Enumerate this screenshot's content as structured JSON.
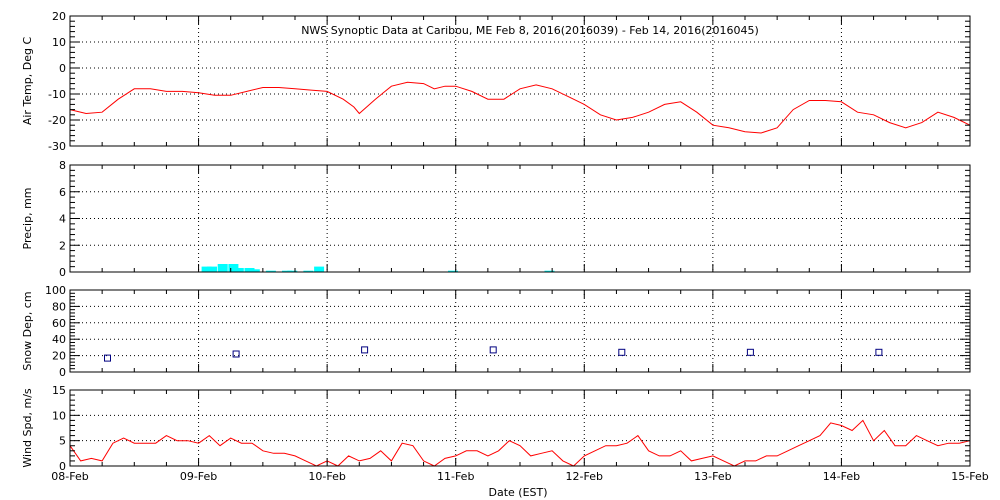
{
  "chart_data": {
    "type": "multi-panel time series",
    "title": "NWS Synoptic Data at Caribou, ME   Feb  8, 2016(2016039) - Feb 14, 2016(2016045)",
    "xlabel": "Date (EST)",
    "x_tick_labels": [
      "08-Feb",
      "09-Feb",
      "10-Feb",
      "11-Feb",
      "12-Feb",
      "13-Feb",
      "14-Feb",
      "15-Feb"
    ],
    "xlim": [
      "2016-02-08",
      "2016-02-15"
    ],
    "grid": true,
    "colors": {
      "temp": "#ff0000",
      "precip": "#00ffff",
      "snow": "#000080",
      "wind": "#ff0000"
    },
    "panels": [
      {
        "name": "temp",
        "type": "line",
        "ylabel": "Air Temp, Deg C",
        "ylim": [
          -30,
          20
        ],
        "yticks": [
          -30,
          -20,
          -10,
          0,
          10,
          20
        ],
        "series": [
          {
            "x": [
              "2016-02-08 00:00",
              "2016-02-08 03:00",
              "2016-02-08 06:00",
              "2016-02-08 09:00",
              "2016-02-08 12:00",
              "2016-02-08 15:00",
              "2016-02-08 18:00",
              "2016-02-08 21:00",
              "2016-02-09 00:00",
              "2016-02-09 03:00",
              "2016-02-09 06:00",
              "2016-02-09 09:00",
              "2016-02-09 12:00",
              "2016-02-09 15:00",
              "2016-02-09 18:00",
              "2016-02-09 21:00",
              "2016-02-10 00:00",
              "2016-02-10 03:00",
              "2016-02-10 05:00",
              "2016-02-10 06:00",
              "2016-02-10 09:00",
              "2016-02-10 12:00",
              "2016-02-10 15:00",
              "2016-02-10 18:00",
              "2016-02-10 20:00",
              "2016-02-10 22:00",
              "2016-02-11 00:00",
              "2016-02-11 03:00",
              "2016-02-11 06:00",
              "2016-02-11 09:00",
              "2016-02-11 12:00",
              "2016-02-11 15:00",
              "2016-02-11 18:00",
              "2016-02-11 21:00",
              "2016-02-12 00:00",
              "2016-02-12 03:00",
              "2016-02-12 06:00",
              "2016-02-12 09:00",
              "2016-02-12 12:00",
              "2016-02-12 15:00",
              "2016-02-12 18:00",
              "2016-02-12 21:00",
              "2016-02-13 00:00",
              "2016-02-13 03:00",
              "2016-02-13 06:00",
              "2016-02-13 09:00",
              "2016-02-13 12:00",
              "2016-02-13 15:00",
              "2016-02-13 18:00",
              "2016-02-13 21:00",
              "2016-02-14 00:00",
              "2016-02-14 03:00",
              "2016-02-14 06:00",
              "2016-02-14 09:00",
              "2016-02-14 12:00",
              "2016-02-14 15:00",
              "2016-02-14 18:00",
              "2016-02-14 21:00",
              "2016-02-15 00:00"
            ],
            "y": [
              -16,
              -17.5,
              -17,
              -12,
              -8,
              -8,
              -9,
              -9,
              -9.5,
              -10.5,
              -10.5,
              -9,
              -7.5,
              -7.5,
              -8,
              -8.5,
              -9,
              -12,
              -15,
              -17.5,
              -12,
              -7,
              -5.5,
              -6,
              -8,
              -7,
              -7,
              -9,
              -12,
              -12,
              -8,
              -6.5,
              -8,
              -11,
              -14,
              -18,
              -20,
              -19,
              -17,
              -14,
              -13,
              -17,
              -22,
              -23,
              -24.5,
              -25,
              -23,
              -16,
              -12.5,
              -12.5,
              -13,
              -17,
              -18,
              -21,
              -23,
              -21,
              -17,
              -19,
              -22
            ]
          }
        ]
      },
      {
        "name": "precip",
        "type": "bar",
        "ylabel": "Precip, mm",
        "ylim": [
          0,
          8
        ],
        "yticks": [
          0,
          2,
          4,
          6,
          8
        ],
        "series": [
          {
            "x": [
              "2016-02-09 01:30",
              "2016-02-09 02:30",
              "2016-02-09 04:30",
              "2016-02-09 06:30",
              "2016-02-09 07:30",
              "2016-02-09 09:30",
              "2016-02-09 10:30",
              "2016-02-09 13:30",
              "2016-02-09 16:30",
              "2016-02-09 17:30",
              "2016-02-09 20:30",
              "2016-02-09 22:30",
              "2016-02-10 23:30",
              "2016-02-11 17:30"
            ],
            "y": [
              0.4,
              0.4,
              0.6,
              0.6,
              0.3,
              0.3,
              0.2,
              0.1,
              0.1,
              0.1,
              0.1,
              0.4,
              0.1,
              0.1
            ]
          }
        ]
      },
      {
        "name": "snow",
        "type": "scatter",
        "ylabel": "Snow Dep, cm",
        "ylim": [
          0,
          100
        ],
        "yticks": [
          0,
          20,
          40,
          60,
          80,
          100
        ],
        "series": [
          {
            "x": [
              "2016-02-08 07:00",
              "2016-02-09 07:00",
              "2016-02-10 07:00",
              "2016-02-11 07:00",
              "2016-02-12 07:00",
              "2016-02-13 07:00",
              "2016-02-14 07:00"
            ],
            "y": [
              17,
              22,
              27,
              27,
              24,
              24,
              24
            ]
          }
        ]
      },
      {
        "name": "wind",
        "type": "line",
        "ylabel": "Wind Spd, m/s",
        "ylim": [
          0,
          15
        ],
        "yticks": [
          0,
          5,
          10,
          15
        ],
        "series": [
          {
            "x": [
              "2016-02-08 00:00",
              "2016-02-08 02:00",
              "2016-02-08 04:00",
              "2016-02-08 06:00",
              "2016-02-08 08:00",
              "2016-02-08 10:00",
              "2016-02-08 12:00",
              "2016-02-08 14:00",
              "2016-02-08 16:00",
              "2016-02-08 18:00",
              "2016-02-08 20:00",
              "2016-02-08 22:00",
              "2016-02-09 00:00",
              "2016-02-09 02:00",
              "2016-02-09 04:00",
              "2016-02-09 06:00",
              "2016-02-09 08:00",
              "2016-02-09 10:00",
              "2016-02-09 12:00",
              "2016-02-09 14:00",
              "2016-02-09 16:00",
              "2016-02-09 18:00",
              "2016-02-09 20:00",
              "2016-02-09 22:00",
              "2016-02-10 00:00",
              "2016-02-10 02:00",
              "2016-02-10 04:00",
              "2016-02-10 06:00",
              "2016-02-10 08:00",
              "2016-02-10 10:00",
              "2016-02-10 12:00",
              "2016-02-10 14:00",
              "2016-02-10 16:00",
              "2016-02-10 18:00",
              "2016-02-10 20:00",
              "2016-02-10 22:00",
              "2016-02-11 00:00",
              "2016-02-11 02:00",
              "2016-02-11 04:00",
              "2016-02-11 06:00",
              "2016-02-11 08:00",
              "2016-02-11 10:00",
              "2016-02-11 12:00",
              "2016-02-11 14:00",
              "2016-02-11 16:00",
              "2016-02-11 18:00",
              "2016-02-11 20:00",
              "2016-02-11 22:00",
              "2016-02-12 00:00",
              "2016-02-12 02:00",
              "2016-02-12 04:00",
              "2016-02-12 06:00",
              "2016-02-12 08:00",
              "2016-02-12 10:00",
              "2016-02-12 12:00",
              "2016-02-12 14:00",
              "2016-02-12 16:00",
              "2016-02-12 18:00",
              "2016-02-12 20:00",
              "2016-02-12 22:00",
              "2016-02-13 00:00",
              "2016-02-13 02:00",
              "2016-02-13 04:00",
              "2016-02-13 06:00",
              "2016-02-13 08:00",
              "2016-02-13 10:00",
              "2016-02-13 12:00",
              "2016-02-13 14:00",
              "2016-02-13 16:00",
              "2016-02-13 18:00",
              "2016-02-13 20:00",
              "2016-02-13 22:00",
              "2016-02-14 00:00",
              "2016-02-14 02:00",
              "2016-02-14 04:00",
              "2016-02-14 06:00",
              "2016-02-14 08:00",
              "2016-02-14 10:00",
              "2016-02-14 12:00",
              "2016-02-14 14:00",
              "2016-02-14 16:00",
              "2016-02-14 18:00",
              "2016-02-14 20:00",
              "2016-02-14 22:00",
              "2016-02-15 00:00"
            ],
            "y": [
              4,
              1,
              1.5,
              1,
              4.5,
              5.5,
              4.5,
              4.5,
              4.5,
              6,
              5,
              5,
              4.5,
              6,
              4,
              5.5,
              4.5,
              4.5,
              3,
              2.5,
              2.5,
              2,
              1,
              0,
              1,
              0,
              2,
              1,
              1.5,
              3,
              1,
              4.5,
              4,
              1,
              0,
              1.5,
              2,
              3,
              3,
              2,
              3,
              5,
              4,
              2,
              2.5,
              3,
              1,
              0,
              2,
              3,
              4,
              4,
              4.5,
              6,
              3,
              2,
              2,
              3,
              1,
              1.5,
              2,
              1,
              0,
              1,
              1,
              2,
              2,
              3,
              4,
              5,
              6,
              8.5,
              8,
              7,
              9,
              5,
              7,
              4,
              4,
              6,
              5,
              4,
              4.5,
              4.5,
              5
            ]
          }
        ]
      }
    ]
  }
}
